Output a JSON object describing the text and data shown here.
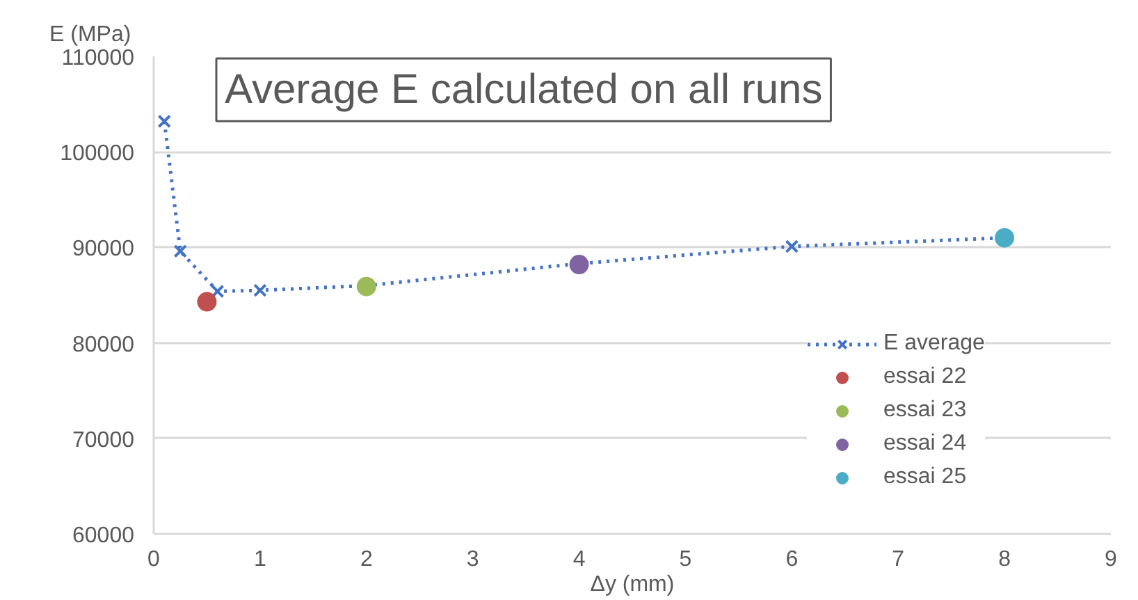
{
  "chart_data": {
    "type": "scatter",
    "title": "Average E calculated on all runs",
    "xlabel": "Δy (mm)",
    "ylabel": "E (MPa)",
    "xlim": [
      0,
      9
    ],
    "xticks": [
      0,
      1,
      2,
      3,
      4,
      5,
      6,
      7,
      8,
      9
    ],
    "ylim": [
      60000,
      110000
    ],
    "yticks": [
      60000,
      70000,
      80000,
      90000,
      100000,
      110000
    ],
    "grid": "y",
    "legend": "right",
    "series": [
      {
        "name": "E average",
        "type": "line",
        "color": "#4472c4",
        "marker": "cross",
        "line_style": "dotted",
        "x": [
          0.1,
          0.25,
          0.6,
          1,
          2,
          4,
          6,
          8
        ],
        "values": [
          103200,
          89600,
          85400,
          85500,
          86000,
          88300,
          90100,
          91000
        ]
      },
      {
        "name": "essai 22",
        "color": "#c0504d",
        "marker": "circle",
        "x": [
          0.5
        ],
        "values": [
          84300
        ]
      },
      {
        "name": "essai 23",
        "color": "#9bbb59",
        "marker": "circle",
        "x": [
          2
        ],
        "values": [
          85900
        ]
      },
      {
        "name": "essai 24",
        "color": "#8064a2",
        "marker": "circle",
        "x": [
          4
        ],
        "values": [
          88200
        ]
      },
      {
        "name": "essai 25",
        "color": "#4bacc6",
        "marker": "circle",
        "x": [
          8
        ],
        "values": [
          91000
        ]
      }
    ]
  }
}
